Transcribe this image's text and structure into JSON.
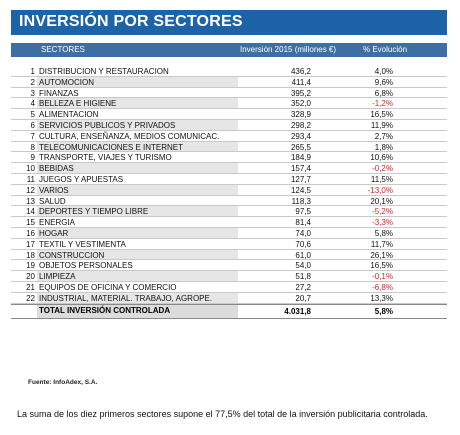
{
  "title": "INVERSIÓN POR SECTORES",
  "header": {
    "sectores": "SECTORES",
    "inversion": "Inversión 2015 (millones €)",
    "evolucion": "% Evolución"
  },
  "rows": [
    {
      "n": "1",
      "name": "DISTRIBUCION Y RESTAURACION",
      "value": "436,2",
      "evo": "4,0%"
    },
    {
      "n": "2",
      "name": "AUTOMOCION",
      "value": "411,4",
      "evo": "9,6%"
    },
    {
      "n": "3",
      "name": "FINANZAS",
      "value": "395,2",
      "evo": "6,8%"
    },
    {
      "n": "4",
      "name": "BELLEZA E HIGIENE",
      "value": "352,0",
      "evo": "-1,2%"
    },
    {
      "n": "5",
      "name": "ALIMENTACION",
      "value": "328,9",
      "evo": "16,5%"
    },
    {
      "n": "6",
      "name": "SERVICIOS PUBLICOS Y PRIVADOS",
      "value": "298,2",
      "evo": "11,9%"
    },
    {
      "n": "7",
      "name": "CULTURA, ENSEÑANZA, MEDIOS COMUNICAC.",
      "value": "293,4",
      "evo": "2,7%"
    },
    {
      "n": "8",
      "name": "TELECOMUNICACIONES E INTERNET",
      "value": "265,5",
      "evo": "1,8%"
    },
    {
      "n": "9",
      "name": "TRANSPORTE, VIAJES Y TURISMO",
      "value": "184,9",
      "evo": "10,6%"
    },
    {
      "n": "10",
      "name": "BEBIDAS",
      "value": "157,4",
      "evo": "-0,2%"
    },
    {
      "n": "11",
      "name": "JUEGOS Y APUESTAS",
      "value": "127,7",
      "evo": "11,5%"
    },
    {
      "n": "12",
      "name": "VARIOS",
      "value": "124,5",
      "evo": "-13,0%"
    },
    {
      "n": "13",
      "name": "SALUD",
      "value": "118,3",
      "evo": "20,1%"
    },
    {
      "n": "14",
      "name": "DEPORTES Y TIEMPO LIBRE",
      "value": "97,5",
      "evo": "-5,2%"
    },
    {
      "n": "15",
      "name": "ENERGIA",
      "value": "81,4",
      "evo": "-3,3%"
    },
    {
      "n": "16",
      "name": "HOGAR",
      "value": "74,0",
      "evo": "5,8%"
    },
    {
      "n": "17",
      "name": "TEXTIL Y VESTIMENTA",
      "value": "70,6",
      "evo": "11,7%"
    },
    {
      "n": "18",
      "name": "CONSTRUCCION",
      "value": "61,0",
      "evo": "26,1%"
    },
    {
      "n": "19",
      "name": "OBJETOS PERSONALES",
      "value": "54,0",
      "evo": "16,5%"
    },
    {
      "n": "20",
      "name": "LIMPIEZA",
      "value": "51,8",
      "evo": "-0,1%"
    },
    {
      "n": "21",
      "name": "EQUIPOS DE OFICINA Y COMERCIO",
      "value": "27,2",
      "evo": "-6,8%"
    },
    {
      "n": "22",
      "name": "INDUSTRIAL, MATERIAL. TRABAJO, AGROPE.",
      "value": "20,7",
      "evo": "13,3%"
    }
  ],
  "total": {
    "name": "TOTAL INVERSIÓN CONTROLADA",
    "value": "4.031,8",
    "evo": "5,8%"
  },
  "source": "Fuente: InfoAdex, S.A.",
  "footnote": "La suma de los diez primeros sectores supone el 77,5% del total de la inversión publicitaria controlada.",
  "colors": {
    "title_bg": "#1d63a8",
    "header_bg": "#3d6fa6",
    "negative": "#d8232a"
  }
}
